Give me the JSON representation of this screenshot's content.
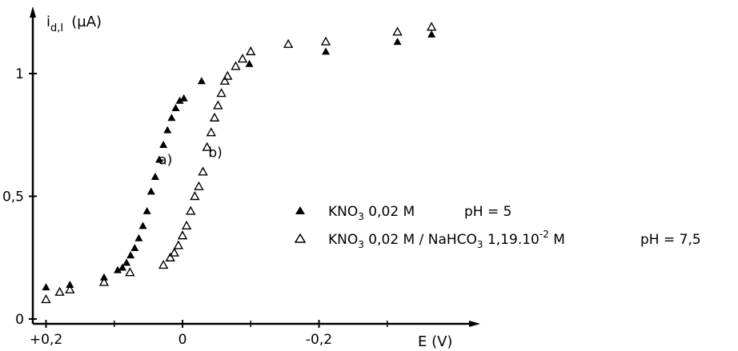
{
  "chart_data": {
    "type": "scatter",
    "ylabel_main": "i",
    "ylabel_sub": "d,I",
    "ylabel_unit": "(µA)",
    "xlabel": "E (V)",
    "xlim": [
      0.22,
      -0.38
    ],
    "ylim": [
      0,
      1.25
    ],
    "x_ticks": [
      {
        "value": 0.2,
        "label": "+0,2"
      },
      {
        "value": 0.0,
        "label": "0"
      },
      {
        "value": -0.2,
        "label": "-0,2"
      }
    ],
    "y_ticks": [
      {
        "value": 0,
        "label": "0"
      },
      {
        "value": 0.5,
        "label": "0,5"
      },
      {
        "value": 1,
        "label": "1"
      }
    ],
    "annotations": [
      {
        "text": "a)",
        "x": 0.035,
        "y": 0.63
      },
      {
        "text": "b)",
        "x": -0.038,
        "y": 0.66
      }
    ],
    "legend": {
      "placement": "right",
      "items": [
        {
          "marker": "filled-triangle",
          "pre": "KNO",
          "sub": "3",
          "mid": " 0,02 M",
          "sup": "",
          "post": "",
          "ph": "pH = 5"
        },
        {
          "marker": "open-triangle",
          "pre": "KNO",
          "sub": "3",
          "mid": " 0,02 M / NaHCO",
          "sub2": "3",
          "mid2": " 1,19.10",
          "sup": "-2",
          "post": " M",
          "ph": "pH = 7,5"
        }
      ]
    },
    "series": [
      {
        "marker": "filled-triangle",
        "color": "#000000",
        "points": [
          [
            0.2,
            0.13
          ],
          [
            0.165,
            0.14
          ],
          [
            0.115,
            0.17
          ],
          [
            0.095,
            0.2
          ],
          [
            0.088,
            0.21
          ],
          [
            0.082,
            0.23
          ],
          [
            0.076,
            0.26
          ],
          [
            0.07,
            0.29
          ],
          [
            0.064,
            0.33
          ],
          [
            0.058,
            0.38
          ],
          [
            0.052,
            0.44
          ],
          [
            0.046,
            0.52
          ],
          [
            0.04,
            0.58
          ],
          [
            0.034,
            0.65
          ],
          [
            0.028,
            0.71
          ],
          [
            0.022,
            0.77
          ],
          [
            0.016,
            0.82
          ],
          [
            0.01,
            0.86
          ],
          [
            0.004,
            0.89
          ],
          [
            -0.002,
            0.9
          ],
          [
            -0.028,
            0.97
          ],
          [
            -0.098,
            1.04
          ],
          [
            -0.21,
            1.09
          ],
          [
            -0.315,
            1.13
          ],
          [
            -0.365,
            1.16
          ]
        ]
      },
      {
        "marker": "open-triangle",
        "color": "#000000",
        "points": [
          [
            0.2,
            0.08
          ],
          [
            0.18,
            0.11
          ],
          [
            0.165,
            0.12
          ],
          [
            0.115,
            0.15
          ],
          [
            0.077,
            0.19
          ],
          [
            0.028,
            0.22
          ],
          [
            0.018,
            0.25
          ],
          [
            0.012,
            0.27
          ],
          [
            0.006,
            0.3
          ],
          [
            0.0,
            0.34
          ],
          [
            -0.006,
            0.38
          ],
          [
            -0.012,
            0.44
          ],
          [
            -0.018,
            0.5
          ],
          [
            -0.024,
            0.54
          ],
          [
            -0.03,
            0.6
          ],
          [
            -0.036,
            0.7
          ],
          [
            -0.042,
            0.76
          ],
          [
            -0.047,
            0.82
          ],
          [
            -0.052,
            0.87
          ],
          [
            -0.057,
            0.92
          ],
          [
            -0.062,
            0.97
          ],
          [
            -0.066,
            0.99
          ],
          [
            -0.078,
            1.03
          ],
          [
            -0.088,
            1.06
          ],
          [
            -0.1,
            1.09
          ],
          [
            -0.155,
            1.12
          ],
          [
            -0.21,
            1.13
          ],
          [
            -0.315,
            1.17
          ],
          [
            -0.365,
            1.19
          ]
        ]
      }
    ]
  }
}
